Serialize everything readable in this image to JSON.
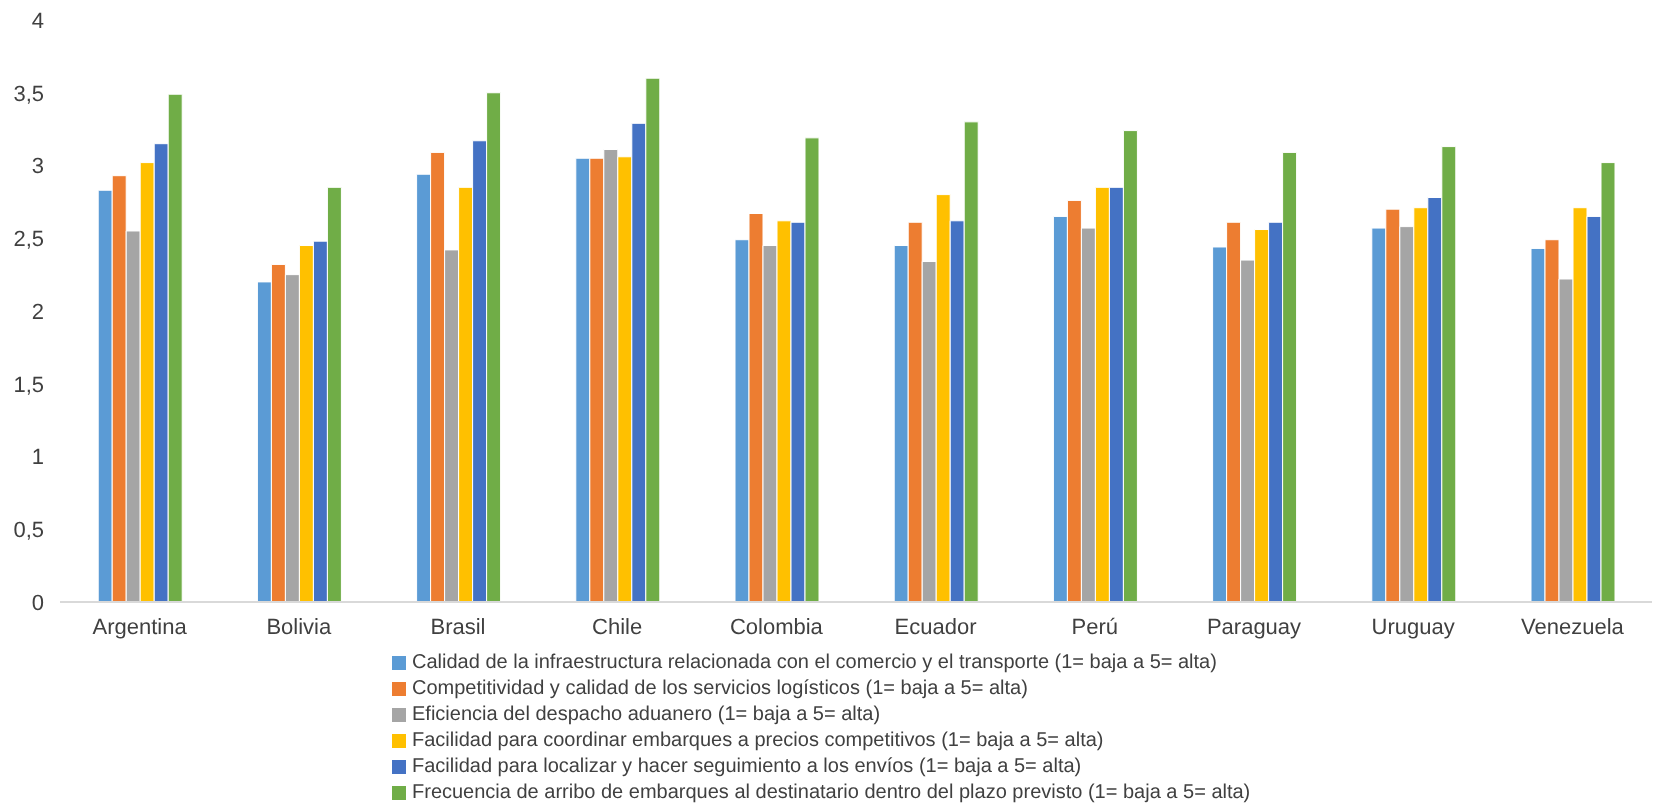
{
  "chart_data": {
    "type": "bar",
    "categories": [
      "Argentina",
      "Bolivia",
      "Brasil",
      "Chile",
      "Colombia",
      "Ecuador",
      "Perú",
      "Paraguay",
      "Uruguay",
      "Venezuela"
    ],
    "series": [
      {
        "name": "Calidad de la infraestructura relacionada con el comercio y el transporte (1= baja a 5= alta)",
        "color": "#5b9bd5",
        "values": [
          2.83,
          2.2,
          2.94,
          3.05,
          2.49,
          2.45,
          2.65,
          2.44,
          2.57,
          2.43
        ]
      },
      {
        "name": "Competitividad y calidad de los servicios logísticos (1= baja a 5= alta)",
        "color": "#ed7d31",
        "values": [
          2.93,
          2.32,
          3.09,
          3.05,
          2.67,
          2.61,
          2.76,
          2.61,
          2.7,
          2.49
        ]
      },
      {
        "name": "Eficiencia del despacho aduanero (1= baja a 5= alta)",
        "color": "#a5a5a5",
        "values": [
          2.55,
          2.25,
          2.42,
          3.11,
          2.45,
          2.34,
          2.57,
          2.35,
          2.58,
          2.22
        ]
      },
      {
        "name": "Facilidad para coordinar embarques a precios competitivos (1= baja a 5= alta)",
        "color": "#ffc000",
        "values": [
          3.02,
          2.45,
          2.85,
          3.06,
          2.62,
          2.8,
          2.85,
          2.56,
          2.71,
          2.71
        ]
      },
      {
        "name": "Facilidad para localizar y hacer seguimiento a los envíos (1= baja a 5= alta)",
        "color": "#4472c4",
        "values": [
          3.15,
          2.48,
          3.17,
          3.29,
          2.61,
          2.62,
          2.85,
          2.61,
          2.78,
          2.65
        ]
      },
      {
        "name": "Frecuencia de arribo de embarques al destinatario dentro del plazo previsto (1= baja a 5= alta)",
        "color": "#70ad47",
        "values": [
          3.49,
          2.85,
          3.5,
          3.6,
          3.19,
          3.3,
          3.24,
          3.09,
          3.13,
          3.02
        ]
      }
    ],
    "ylim": [
      0,
      4
    ],
    "yticks": [
      0,
      {
        "value": 0.5,
        "label": "0,5"
      },
      1,
      {
        "value": 1.5,
        "label": "1,5"
      },
      2,
      {
        "value": 2.5,
        "label": "2,5"
      },
      3,
      {
        "value": 3.5,
        "label": "3,5"
      },
      4
    ],
    "grid": false,
    "legend": "bottom"
  }
}
